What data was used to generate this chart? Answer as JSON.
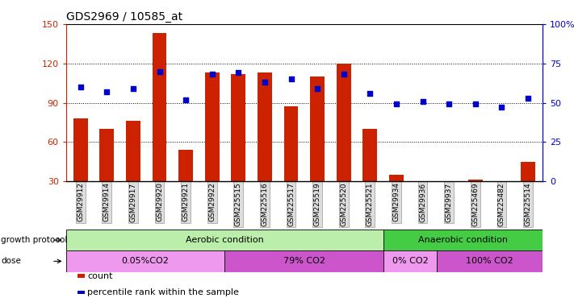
{
  "title": "GDS2969 / 10585_at",
  "samples": [
    "GSM29912",
    "GSM29914",
    "GSM29917",
    "GSM29920",
    "GSM29921",
    "GSM29922",
    "GSM225515",
    "GSM225516",
    "GSM225517",
    "GSM225519",
    "GSM225520",
    "GSM225521",
    "GSM29934",
    "GSM29936",
    "GSM29937",
    "GSM225469",
    "GSM225482",
    "GSM225514"
  ],
  "counts": [
    78,
    70,
    76,
    143,
    54,
    113,
    112,
    113,
    87,
    110,
    120,
    70,
    35,
    22,
    30,
    31,
    21,
    45
  ],
  "percentiles": [
    60,
    57,
    59,
    70,
    52,
    68,
    69,
    63,
    65,
    59,
    68,
    56,
    49,
    51,
    49,
    49,
    47,
    53
  ],
  "ylim_left": [
    30,
    150
  ],
  "ylim_right": [
    0,
    100
  ],
  "yticks_left": [
    30,
    60,
    90,
    120,
    150
  ],
  "yticks_right": [
    0,
    25,
    50,
    75,
    100
  ],
  "bar_color": "#cc2200",
  "dot_color": "#0000cc",
  "title_color": "#000000",
  "left_axis_color": "#cc2200",
  "right_axis_color": "#0000cc",
  "aerobic_color": "#bbeeaa",
  "anaerobic_color": "#44cc44",
  "dose_light": "#ee99ee",
  "dose_dark": "#cc55cc",
  "n_samples": 18,
  "n_aerobic": 12,
  "n_dose1": 6,
  "n_dose2": 6,
  "n_dose3": 2,
  "n_dose4": 4
}
